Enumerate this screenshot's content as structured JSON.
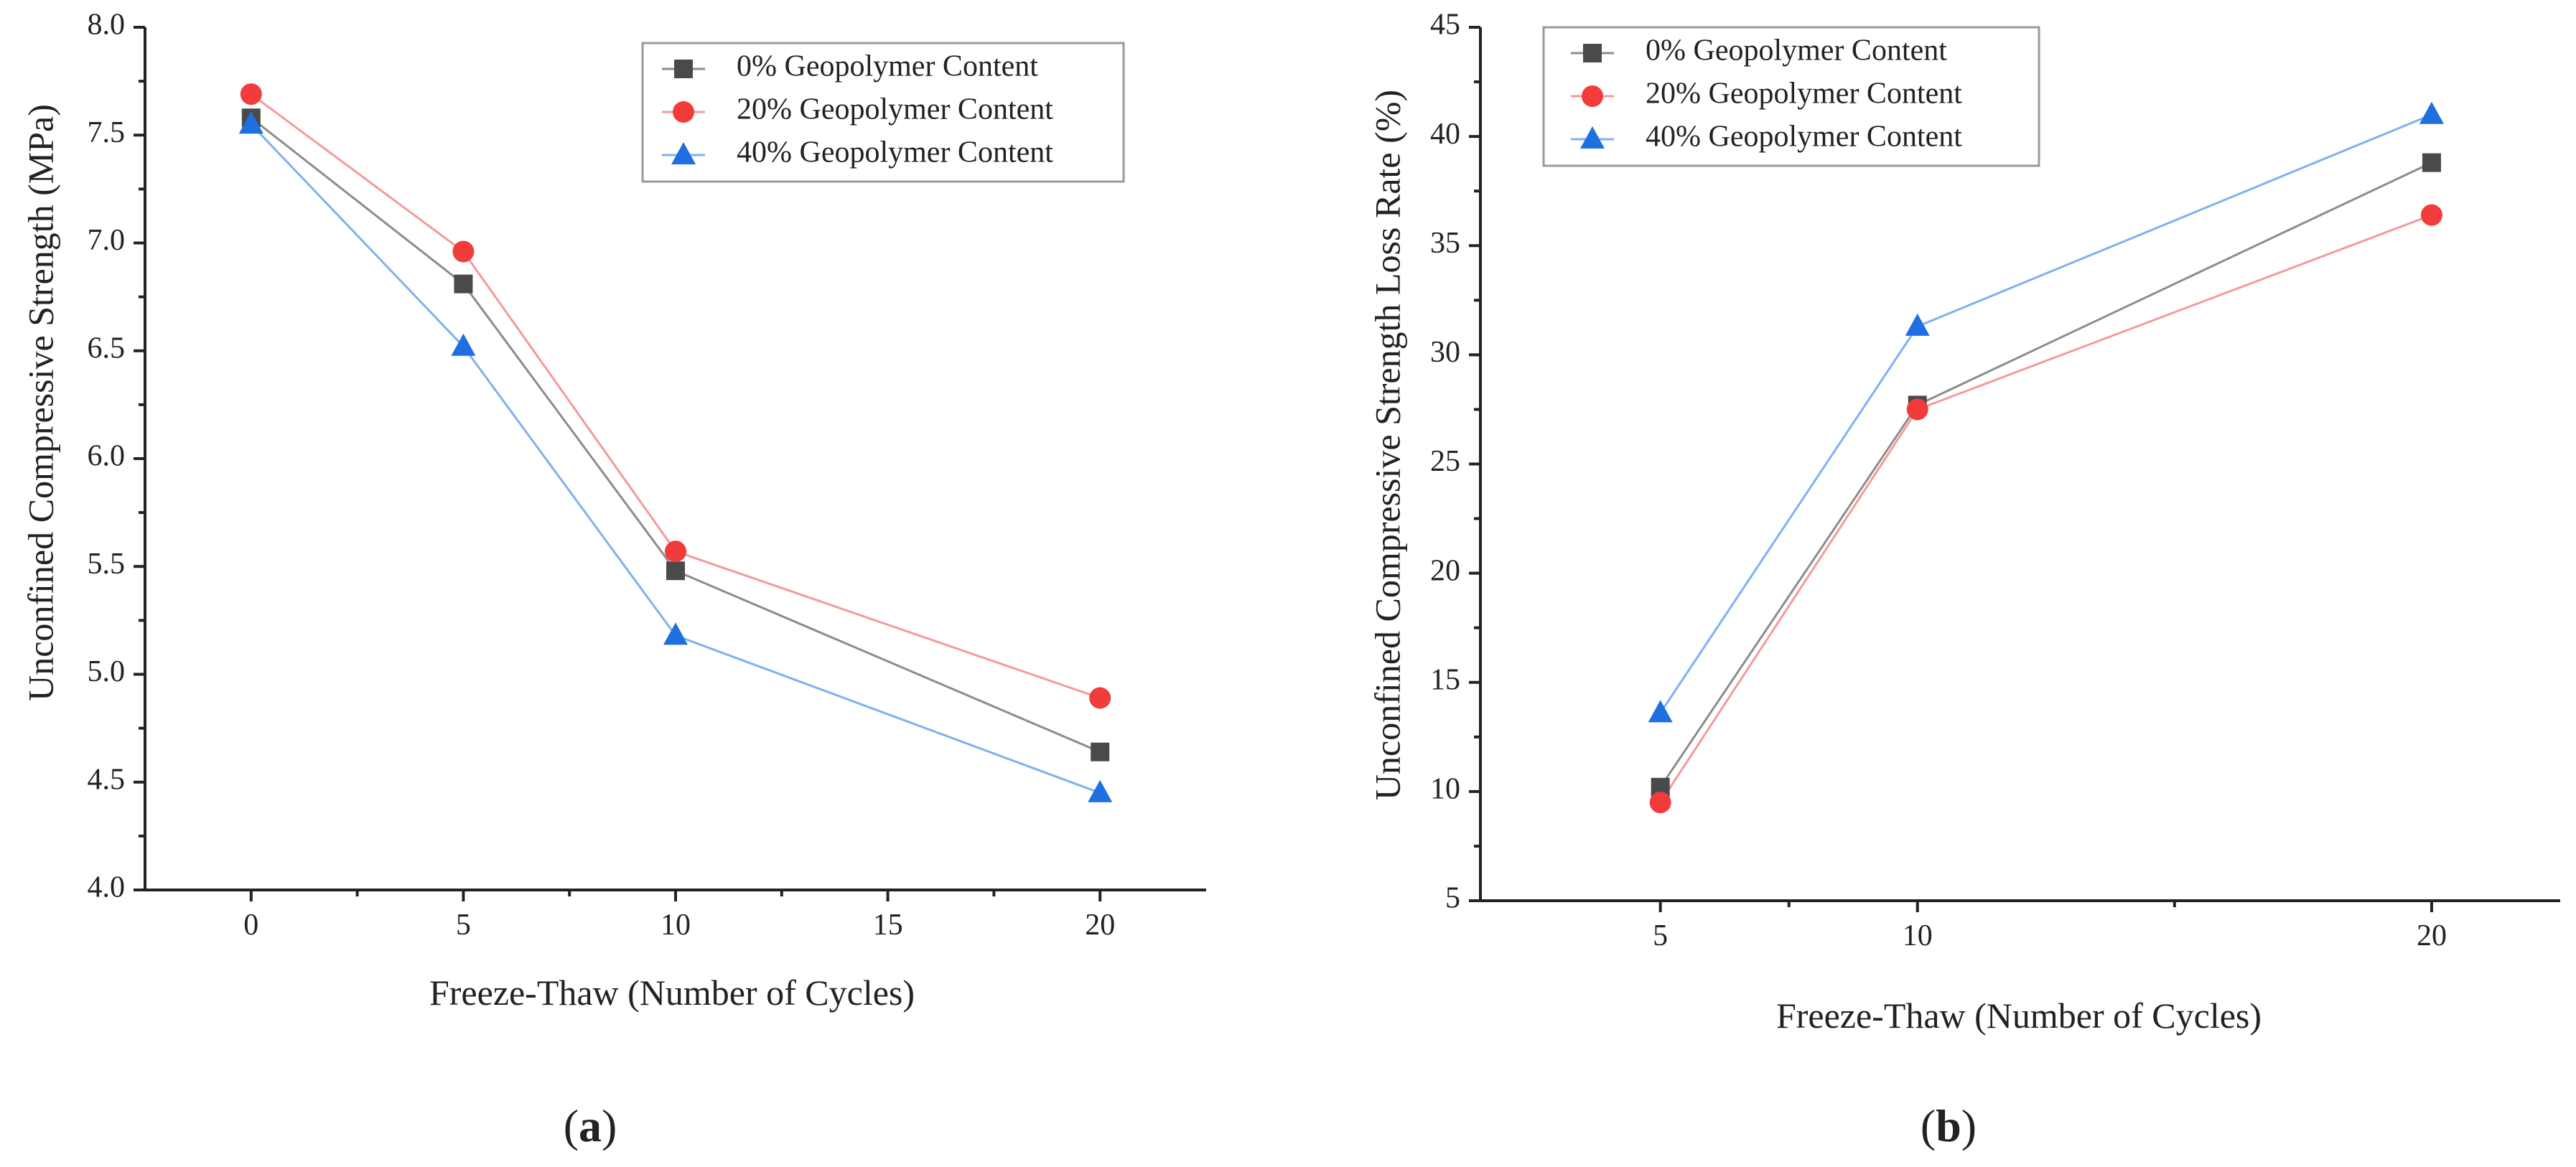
{
  "chart_data": [
    {
      "type": "line",
      "panel_label": "(a)",
      "xlabel": "Freeze-Thaw (Number of Cycles)",
      "ylabel": "Unconfined Compressive Strength (MPa)",
      "xlim": [
        -2.5,
        22.5
      ],
      "ylim": [
        4.0,
        8.0
      ],
      "xticks": [
        0,
        5,
        10,
        15,
        20
      ],
      "yticks": [
        4.0,
        4.5,
        5.0,
        5.5,
        6.0,
        6.5,
        7.0,
        7.5,
        8.0
      ],
      "xtick_labels": [
        "0",
        "5",
        "10",
        "15",
        "20"
      ],
      "ytick_labels": [
        "4.0",
        "4.5",
        "5.0",
        "5.5",
        "6.0",
        "6.5",
        "7.0",
        "7.5",
        "8.0"
      ],
      "legend_position": "top-right",
      "grid": false,
      "x": [
        0,
        5,
        10,
        20
      ],
      "series": [
        {
          "name": "0% Geopolymer Content",
          "marker": "square",
          "color": "#4a4a4a",
          "line_color": "#8c8c8c",
          "values": [
            7.58,
            6.81,
            5.48,
            4.64
          ]
        },
        {
          "name": "20% Geopolymer Content",
          "marker": "circle",
          "color": "#f23c3c",
          "line_color": "#f59a9a",
          "values": [
            7.69,
            6.96,
            5.57,
            4.89
          ]
        },
        {
          "name": "40% Geopolymer Content",
          "marker": "triangle",
          "color": "#1f6fe0",
          "line_color": "#7fb2ee",
          "values": [
            7.55,
            6.52,
            5.18,
            4.45
          ]
        }
      ]
    },
    {
      "type": "line",
      "panel_label": "(b)",
      "xlabel": "Freeze-Thaw (Number of Cycles)",
      "ylabel": "Unconfined Compressive Strength Loss Rate (%)",
      "xlim": [
        1.5,
        22.5
      ],
      "ylim": [
        5,
        45
      ],
      "xticks": [
        5,
        10,
        20
      ],
      "xminor": [
        7.5,
        15
      ],
      "yticks": [
        5,
        10,
        15,
        20,
        25,
        30,
        35,
        40,
        45
      ],
      "xtick_labels": [
        "5",
        "10",
        "20"
      ],
      "ytick_labels": [
        "5",
        "10",
        "15",
        "20",
        "25",
        "30",
        "35",
        "40",
        "45"
      ],
      "legend_position": "top-left",
      "grid": false,
      "x": [
        5,
        10,
        20
      ],
      "series": [
        {
          "name": "0% Geopolymer Content",
          "marker": "square",
          "color": "#4a4a4a",
          "line_color": "#8c8c8c",
          "values": [
            10.2,
            27.7,
            38.8
          ]
        },
        {
          "name": "20% Geopolymer Content",
          "marker": "circle",
          "color": "#f23c3c",
          "line_color": "#f59a9a",
          "values": [
            9.5,
            27.5,
            36.4
          ]
        },
        {
          "name": "40% Geopolymer Content",
          "marker": "triangle",
          "color": "#1f6fe0",
          "line_color": "#7fb2ee",
          "values": [
            13.6,
            31.3,
            41.0
          ]
        }
      ]
    }
  ]
}
